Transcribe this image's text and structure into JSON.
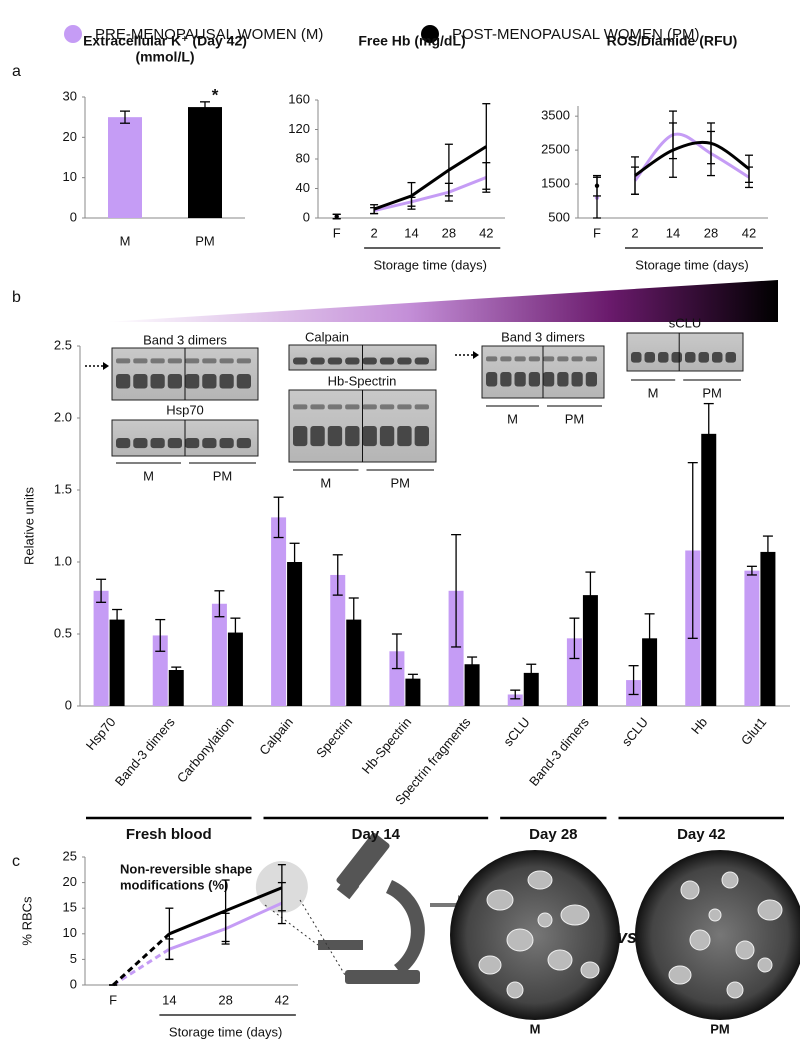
{
  "legend": [
    {
      "name": "PRE-MENOPAUSAL WOMEN (M)",
      "color": "#c59cf5"
    },
    {
      "name": "POST-MENOPAUSAL WOMEN (PM)",
      "color": "#000000"
    }
  ],
  "panel_labels": [
    "a",
    "b",
    "c"
  ],
  "chart_data": [
    {
      "type": "bar",
      "title": "Extracellular K⁺ (Day 42)",
      "subtitle": "(mmol/L)",
      "categories": [
        "M",
        "PM"
      ],
      "values": [
        25,
        27.5
      ],
      "errors": [
        1.5,
        1.3
      ],
      "colors": [
        "#c59cf5",
        "#000000"
      ],
      "annotation": "*",
      "ylim": [
        0,
        30
      ],
      "yticks": [
        0,
        10,
        20,
        30
      ],
      "grid": false
    },
    {
      "type": "line",
      "title": "Free Hb (mg/dL)",
      "categories": [
        "F",
        "2",
        "14",
        "28",
        "42"
      ],
      "xlabel": "Storage time (days)",
      "first_segment_style": "none",
      "smooth": false,
      "series": [
        {
          "color": "#c59cf5",
          "values": [
            2,
            10,
            22,
            35,
            55
          ],
          "errors": [
            3,
            4,
            6,
            12,
            20
          ]
        },
        {
          "color": "#000000",
          "values": [
            2,
            12,
            30,
            65,
            97
          ],
          "errors": [
            3,
            6,
            18,
            35,
            58
          ]
        }
      ],
      "ylim": [
        0,
        160
      ],
      "yticks": [
        0,
        40,
        80,
        120,
        160
      ],
      "grid": false
    },
    {
      "type": "line",
      "title": "ROS/Diamide (RFU)",
      "categories": [
        "F",
        "2",
        "14",
        "28",
        "42"
      ],
      "xlabel": "Storage time (days)",
      "first_segment_style": "none",
      "smooth": true,
      "series": [
        {
          "color": "#c59cf5",
          "values": [
            1100,
            1600,
            2950,
            2400,
            1700
          ],
          "errors": [
            600,
            400,
            700,
            650,
            300
          ]
        },
        {
          "color": "#000000",
          "values": [
            1450,
            1750,
            2500,
            2700,
            1950
          ],
          "errors": [
            300,
            550,
            800,
            600,
            400
          ]
        }
      ],
      "ylim": [
        500,
        3800
      ],
      "yticks": [
        500,
        1500,
        2500,
        3500
      ],
      "grid": false
    },
    {
      "type": "grouped_bar",
      "ylabel": "Relative units",
      "groups": [
        {
          "label": "Fresh blood",
          "categories": [
            "Hsp70",
            "Band-3 dimers",
            "Carbonylation"
          ]
        },
        {
          "label": "Day 14",
          "categories": [
            "Calpain",
            "Spectrin",
            "Hb-Spectrin",
            "Spectrin fragments"
          ]
        },
        {
          "label": "Day 28",
          "categories": [
            "sCLU",
            "Band-3 dimers"
          ]
        },
        {
          "label": "Day 42",
          "categories": [
            "sCLU",
            "Hb",
            "Glut1"
          ]
        }
      ],
      "series": [
        {
          "color": "#c59cf5",
          "values": [
            0.8,
            0.49,
            0.71,
            1.31,
            0.91,
            0.38,
            0.8,
            0.08,
            0.47,
            0.18,
            1.08,
            0.94
          ],
          "errors": [
            0.08,
            0.11,
            0.09,
            0.14,
            0.14,
            0.12,
            0.39,
            0.03,
            0.14,
            0.1,
            0.61,
            0.03
          ]
        },
        {
          "color": "#000000",
          "values": [
            0.6,
            0.25,
            0.51,
            1.0,
            0.6,
            0.19,
            0.29,
            0.23,
            0.77,
            0.47,
            1.89,
            1.07
          ],
          "errors": [
            0.07,
            0.02,
            0.1,
            0.13,
            0.15,
            0.03,
            0.05,
            0.06,
            0.16,
            0.17,
            0.21,
            0.11
          ]
        }
      ],
      "ylim": [
        0,
        2.5
      ],
      "yticks": [
        0,
        0.5,
        {
          "value": 1,
          "label": "1.0"
        },
        1.5,
        {
          "value": 2,
          "label": "2.0"
        },
        2.5
      ],
      "grid": false
    },
    {
      "type": "line",
      "title_lines": [
        "Non-reversible shape",
        "modifications (%)"
      ],
      "ylabel": "% RBCs",
      "categories": [
        "F",
        "14",
        "28",
        "42"
      ],
      "xlabel": "Storage time (days)",
      "first_segment_style": "dashed",
      "smooth": false,
      "series": [
        {
          "color": "#c59cf5",
          "values": [
            0,
            7,
            11,
            16
          ],
          "errors": [
            0,
            2,
            3,
            4
          ]
        },
        {
          "color": "#000000",
          "values": [
            0,
            10,
            14.5,
            19
          ],
          "errors": [
            0,
            5,
            6,
            4.5
          ]
        }
      ],
      "ylim": [
        0,
        25
      ],
      "yticks": [
        0,
        5,
        10,
        15,
        20,
        25
      ],
      "grid": false
    }
  ],
  "blots": [
    {
      "label": "Band 3 dimers"
    },
    {
      "label": "Hsp70"
    },
    {
      "label": "Calpain"
    },
    {
      "label": "Hb-Spectrin"
    },
    {
      "label": "Band 3 dimers"
    },
    {
      "label": "sCLU"
    }
  ],
  "blot_groups": [
    "M",
    "PM"
  ],
  "micrographs": {
    "labels": [
      "M",
      "PM"
    ],
    "separator": "vs"
  }
}
